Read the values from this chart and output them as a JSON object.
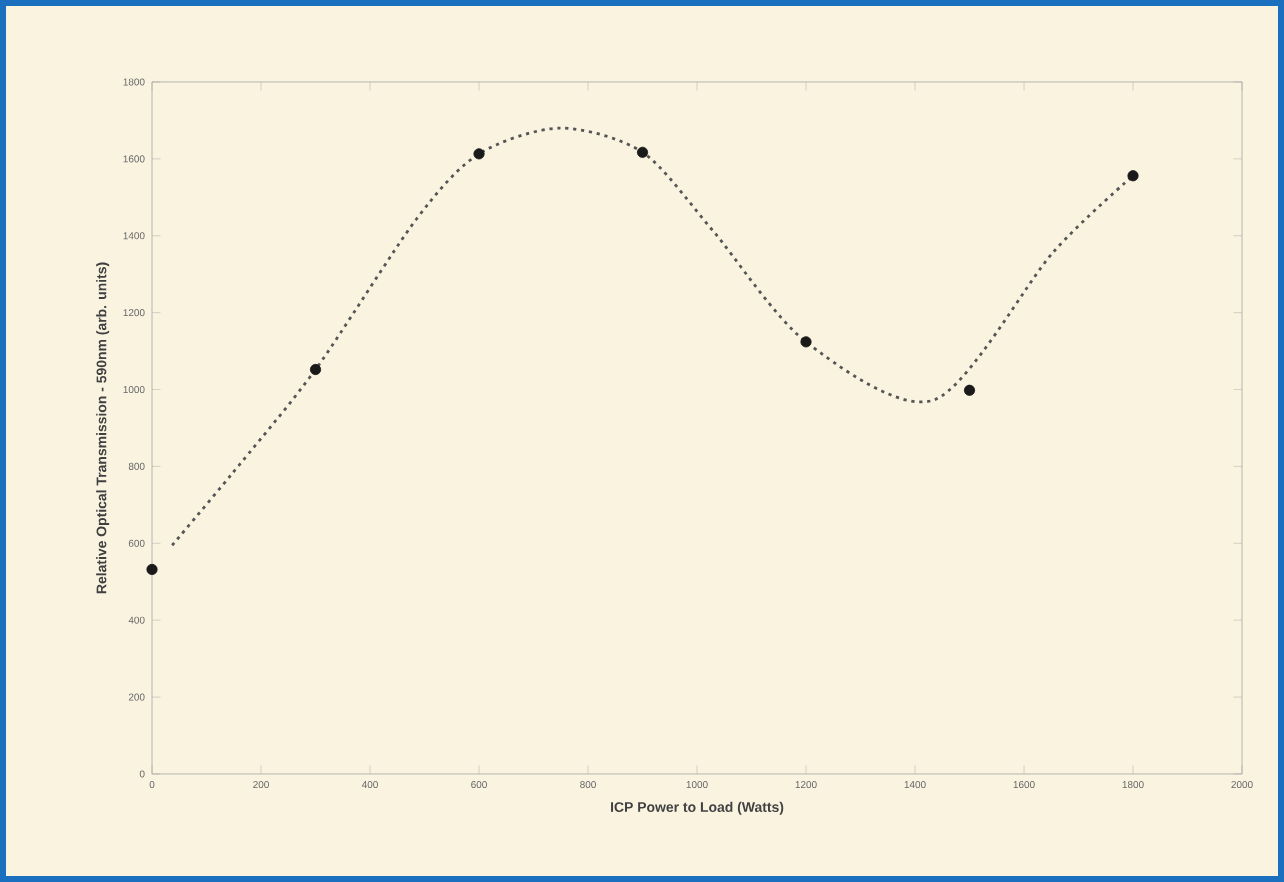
{
  "chart_data": {
    "type": "line",
    "xlabel": "ICP Power to Load (Watts)",
    "ylabel": "Relative Optical Transmission - 590nm (arb. units)",
    "xlim": [
      0,
      2000
    ],
    "xticks": [
      0,
      200,
      400,
      600,
      800,
      1000,
      1200,
      1400,
      1600,
      1800,
      2000
    ],
    "ylim": [
      0,
      1800
    ],
    "yticks": [
      0,
      200,
      400,
      600,
      800,
      1000,
      1200,
      1400,
      1600,
      1800
    ],
    "series": [
      {
        "type": "scatter",
        "color": "#1a1a1a",
        "marker": "circle",
        "x": [
          0,
          300,
          600,
          900,
          1200,
          1500,
          1800
        ],
        "values": [
          532,
          1052,
          1613,
          1617,
          1124,
          998,
          1556
        ]
      },
      {
        "color": "#555555",
        "marker": "none",
        "line_style": "dotted",
        "x": [
          37,
          145,
          300,
          485,
          600,
          749,
          900,
          1028,
          1200,
          1435,
          1654,
          1800
        ],
        "values": [
          595,
          778,
          1052,
          1443,
          1613,
          1680,
          1617,
          1415,
          1124,
          973,
          1358,
          1556
        ]
      }
    ]
  }
}
